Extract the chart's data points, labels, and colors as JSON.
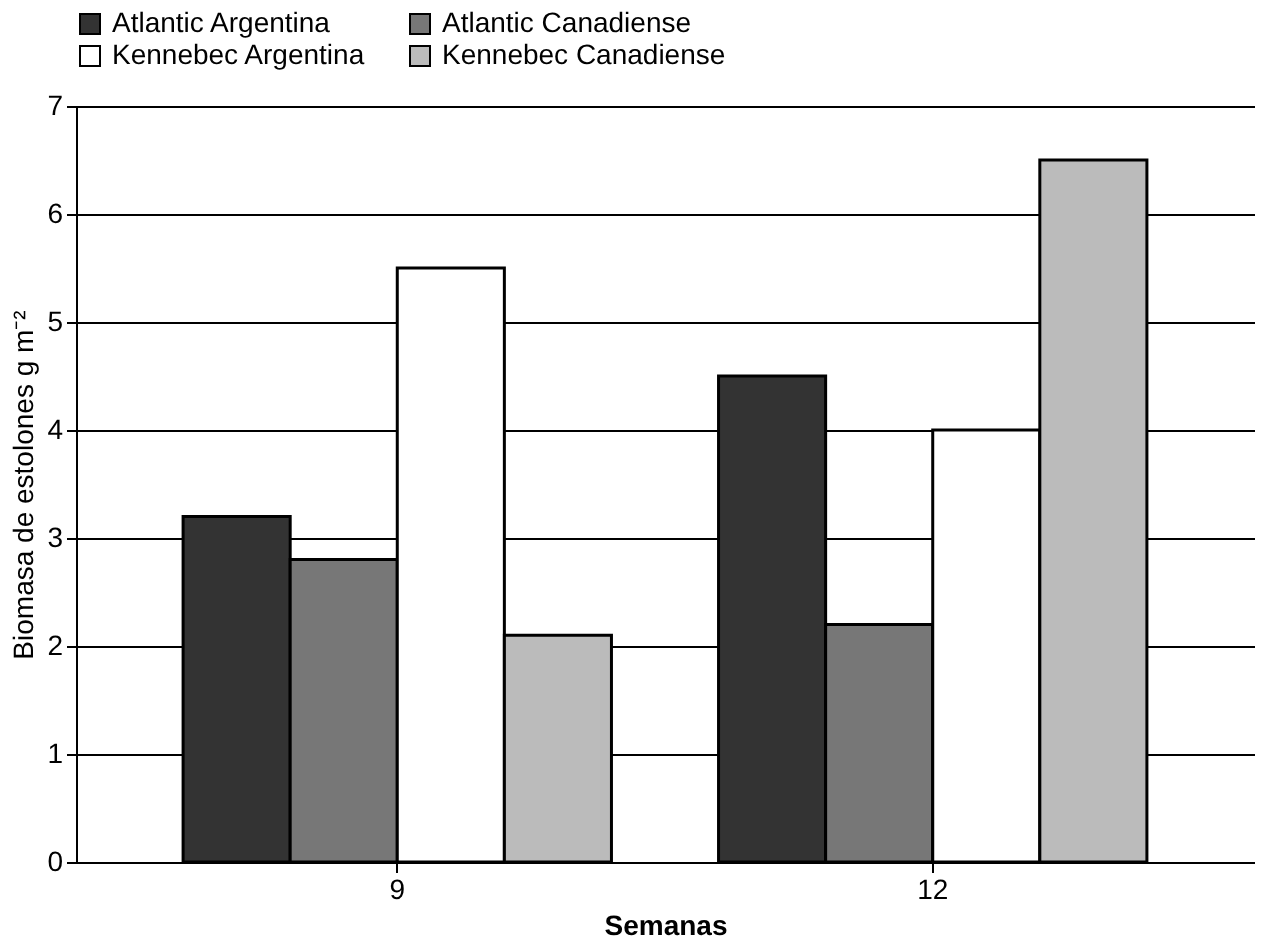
{
  "chart_data": {
    "type": "bar",
    "xlabel": "Semanas",
    "ylabel": "Biomasa de estolones g m⁻²",
    "categories": [
      "9",
      "12"
    ],
    "series": [
      {
        "name": "Atlantic Argentina",
        "color": "#333333",
        "values": [
          3.2,
          4.5
        ]
      },
      {
        "name": "Atlantic Canadiense",
        "color": "#777777",
        "values": [
          2.8,
          2.2
        ]
      },
      {
        "name": "Kennebec Argentina",
        "color": "#ffffff",
        "values": [
          5.5,
          4.0
        ]
      },
      {
        "name": "Kennebec Canadiense",
        "color": "#bbbbbb",
        "values": [
          2.1,
          6.5
        ]
      }
    ],
    "ylim": [
      0,
      7
    ],
    "yticks": [
      0,
      1,
      2,
      3,
      4,
      5,
      6,
      7
    ],
    "grid": "y",
    "legend": "top"
  }
}
